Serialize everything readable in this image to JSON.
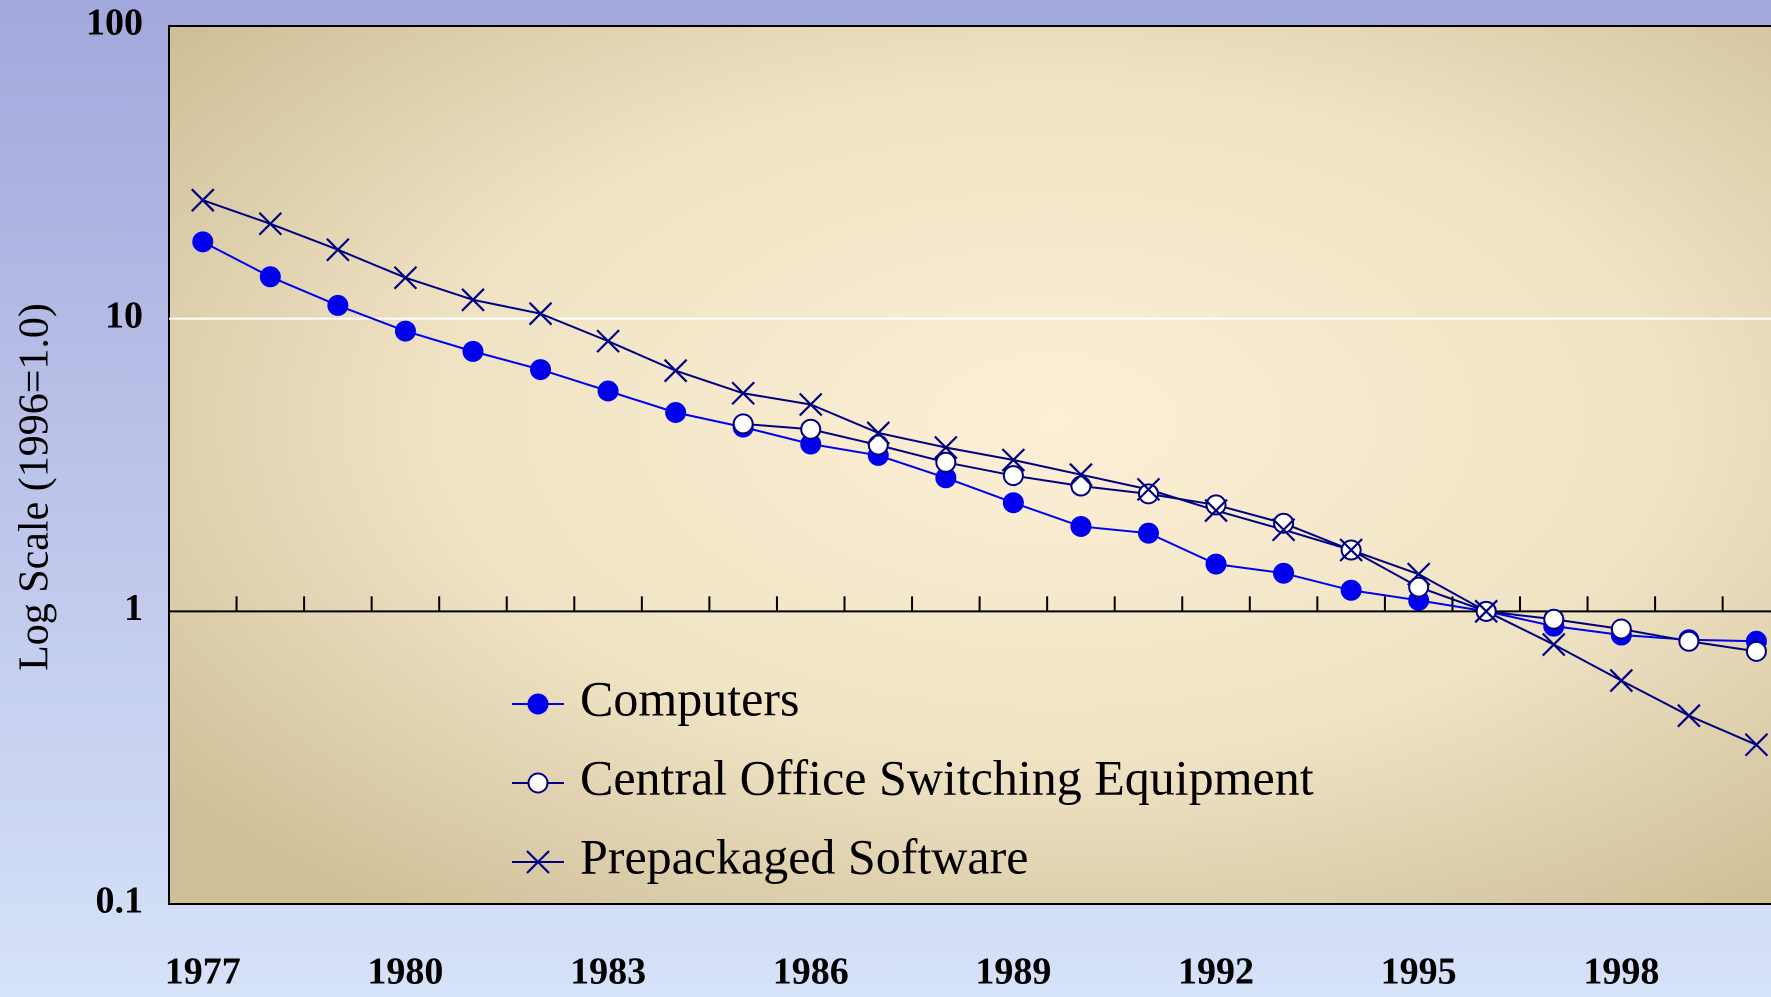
{
  "chart_data": {
    "type": "line",
    "y_label": "Log Scale (1996=1.0)",
    "x": [
      1977,
      1978,
      1979,
      1980,
      1981,
      1982,
      1983,
      1984,
      1985,
      1986,
      1987,
      1988,
      1989,
      1990,
      1991,
      1992,
      1993,
      1994,
      1995,
      1996,
      1997,
      1998,
      1999,
      2000
    ],
    "series": [
      {
        "name": "Computers",
        "color": "#0000ee",
        "marker": "filled-circle",
        "values": [
          18.3,
          13.9,
          11.1,
          9.07,
          7.73,
          6.7,
          5.66,
          4.78,
          4.26,
          3.73,
          3.41,
          2.86,
          2.35,
          1.95,
          1.85,
          1.45,
          1.35,
          1.18,
          1.09,
          1,
          0.89,
          0.83,
          0.8,
          0.79
        ]
      },
      {
        "name": "Central Office Switching Equipment",
        "color": "#000080",
        "marker": "open-circle",
        "values": [
          null,
          null,
          null,
          null,
          null,
          null,
          null,
          null,
          4.37,
          4.19,
          3.7,
          3.23,
          2.91,
          2.68,
          2.52,
          2.31,
          2.0,
          1.62,
          1.21,
          1,
          0.94,
          0.87,
          0.79,
          0.73
        ]
      },
      {
        "name": "Prepackaged Software",
        "color": "#000080",
        "marker": "x",
        "values": [
          25.4,
          21.1,
          17.2,
          13.8,
          11.6,
          10.4,
          8.38,
          6.64,
          5.56,
          5.09,
          4.07,
          3.63,
          3.29,
          2.93,
          2.61,
          2.21,
          1.9,
          1.62,
          1.34,
          1,
          0.77,
          0.58,
          0.44,
          0.35
        ]
      }
    ],
    "xlim": [
      1976.5,
      2000.5
    ],
    "xticks": [
      1977,
      1980,
      1983,
      1986,
      1989,
      1992,
      1995,
      1998
    ],
    "ylim": [
      0.1,
      100
    ],
    "yticks": [
      0.1,
      1,
      10,
      100
    ],
    "log_y": true,
    "grid": true,
    "x_axis_crosses": 1,
    "legend": "lower left"
  }
}
